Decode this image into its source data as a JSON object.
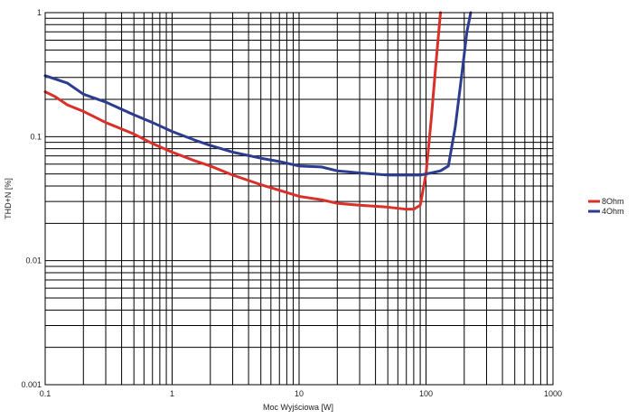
{
  "chart_data": {
    "type": "line",
    "xlabel": "Moc Wyjściowa [W]",
    "ylabel": "THD+N [%]",
    "x_scale": "log",
    "y_scale": "log",
    "xlim": [
      0.1,
      1000
    ],
    "ylim": [
      0.001,
      1
    ],
    "x_ticks": [
      "0.1",
      "1",
      "10",
      "100",
      "1000"
    ],
    "y_ticks": [
      "0.001",
      "0.01",
      "0.1",
      "1"
    ],
    "grid": true,
    "legend_position": "right",
    "series": [
      {
        "name": "8Ohm",
        "color": "#d9302a",
        "points": [
          [
            0.1,
            0.23
          ],
          [
            0.12,
            0.21
          ],
          [
            0.15,
            0.18
          ],
          [
            0.2,
            0.16
          ],
          [
            0.3,
            0.13
          ],
          [
            0.5,
            0.105
          ],
          [
            0.7,
            0.088
          ],
          [
            1,
            0.075
          ],
          [
            1.5,
            0.064
          ],
          [
            2,
            0.058
          ],
          [
            3,
            0.049
          ],
          [
            5,
            0.041
          ],
          [
            7,
            0.037
          ],
          [
            10,
            0.033
          ],
          [
            15,
            0.031
          ],
          [
            20,
            0.029
          ],
          [
            30,
            0.028
          ],
          [
            50,
            0.027
          ],
          [
            70,
            0.026
          ],
          [
            80,
            0.026
          ],
          [
            90,
            0.028
          ],
          [
            100,
            0.05
          ],
          [
            110,
            0.14
          ],
          [
            120,
            0.4
          ],
          [
            130,
            1.0
          ]
        ]
      },
      {
        "name": "4Ohm",
        "color": "#2c3d8f",
        "points": [
          [
            0.1,
            0.31
          ],
          [
            0.15,
            0.27
          ],
          [
            0.2,
            0.22
          ],
          [
            0.3,
            0.19
          ],
          [
            0.5,
            0.15
          ],
          [
            0.7,
            0.13
          ],
          [
            1,
            0.11
          ],
          [
            1.5,
            0.094
          ],
          [
            2,
            0.085
          ],
          [
            3,
            0.075
          ],
          [
            5,
            0.067
          ],
          [
            7,
            0.063
          ],
          [
            10,
            0.058
          ],
          [
            15,
            0.057
          ],
          [
            20,
            0.053
          ],
          [
            30,
            0.051
          ],
          [
            50,
            0.049
          ],
          [
            70,
            0.049
          ],
          [
            90,
            0.049
          ],
          [
            110,
            0.051
          ],
          [
            130,
            0.053
          ],
          [
            150,
            0.058
          ],
          [
            170,
            0.12
          ],
          [
            190,
            0.3
          ],
          [
            210,
            0.7
          ],
          [
            225,
            1.0
          ]
        ]
      }
    ]
  }
}
